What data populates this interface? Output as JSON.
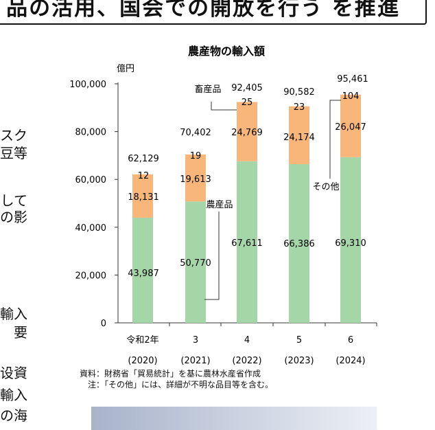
{
  "banner": {
    "text": "品の活用、国会での開放を行う を推進"
  },
  "side_text": [
    "スク",
    "豆等",
    "して",
    "の影",
    "輸入",
    "要",
    "设資",
    "輸入",
    "の海"
  ],
  "notes": {
    "source": "資料：財務省「貿易統計」を基に農林水産省作成",
    "note": "注：「その他」には、詳細が不明な品目等を含む。"
  },
  "colors": {
    "livestock": "#f9b67a",
    "agri": "#a5d6a7",
    "axis": "#333333"
  },
  "chart_data": {
    "type": "bar",
    "stacked": true,
    "title": "農産物の輸入額",
    "ylabel": "億円",
    "ylim": [
      0,
      100000
    ],
    "yticks": [
      "0",
      "20,000",
      "40,000",
      "60,000",
      "80,000",
      "100,000"
    ],
    "categories": [
      "令和2年",
      "3",
      "4",
      "5",
      "6"
    ],
    "categories_sub": [
      "(2020)",
      "(2021)",
      "(2022)",
      "(2023)",
      "(2024)"
    ],
    "series": [
      {
        "name": "農産品",
        "values": [
          43987,
          50770,
          67611,
          66386,
          69310
        ],
        "labels": [
          "43,987",
          "50,770",
          "67,611",
          "66,386",
          "69,310"
        ]
      },
      {
        "name": "畜産品",
        "values": [
          18131,
          19613,
          24769,
          24174,
          26047
        ],
        "labels": [
          "18,131",
          "19,613",
          "24,769",
          "24,174",
          "26,047"
        ]
      },
      {
        "name": "その他",
        "values": [
          12,
          19,
          25,
          23,
          104
        ],
        "labels": [
          "12",
          "19",
          "25",
          "23",
          "104"
        ]
      }
    ],
    "totals": [
      62129,
      70402,
      92405,
      90582,
      95461
    ],
    "total_labels": [
      "62,129",
      "70,402",
      "92,405",
      "90,582",
      "95,461"
    ],
    "legend": "callouts"
  }
}
